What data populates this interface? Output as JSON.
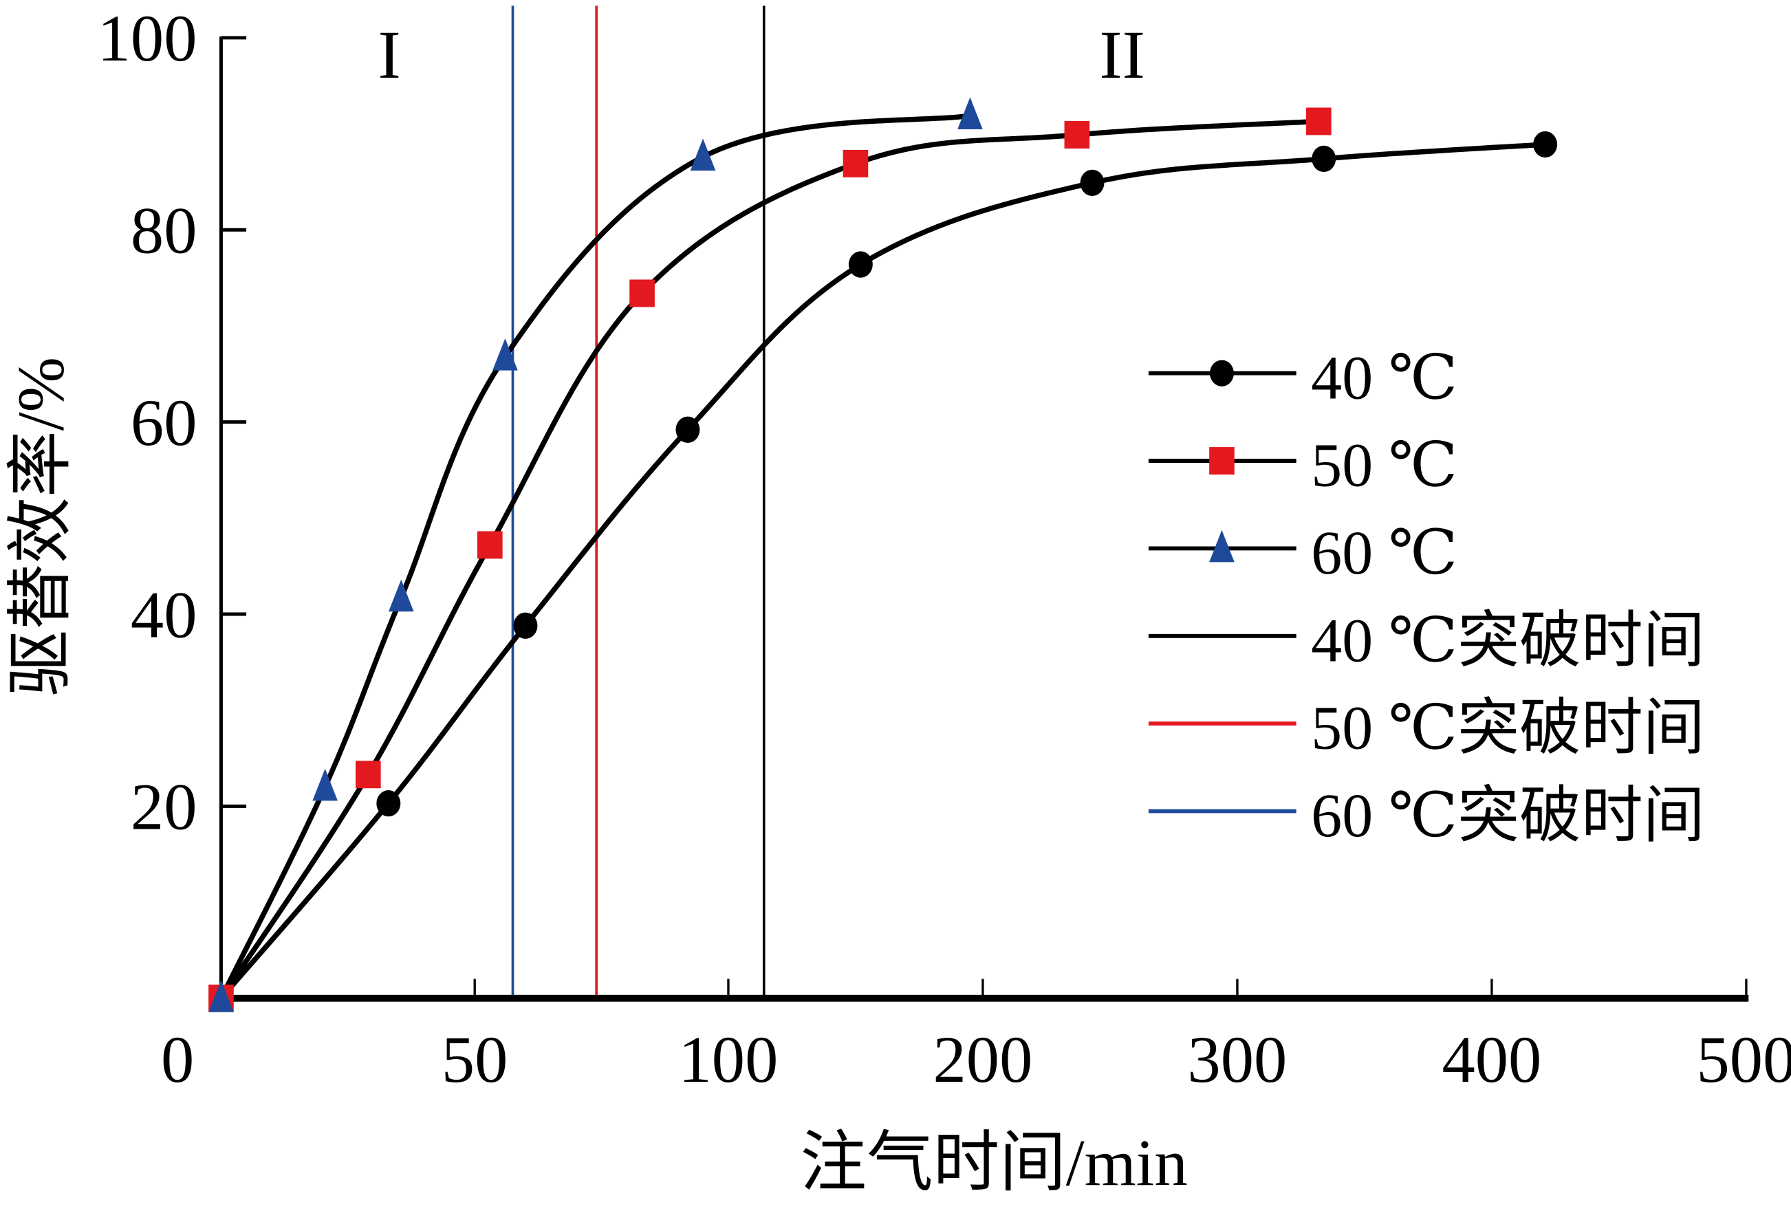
{
  "chart_data": {
    "type": "line",
    "title": "",
    "xlabel": "注气时间/min",
    "ylabel": "驱替效率/%",
    "x_scale": "piecewise: 0-100 expanded, 100-500 compressed",
    "xlim": [
      0,
      500
    ],
    "ylim": [
      0,
      100
    ],
    "x_ticks": [
      0,
      50,
      100,
      200,
      300,
      400,
      500
    ],
    "x_tick_labels": [
      "0",
      "50",
      "100",
      "200",
      "300",
      "400",
      "500"
    ],
    "y_ticks": [
      20,
      40,
      60,
      80,
      100
    ],
    "y_tick_labels": [
      "20",
      "40",
      "60",
      "80",
      "100"
    ],
    "grid": false,
    "legend_position": "right",
    "region_labels": [
      "I",
      "II"
    ],
    "series": [
      {
        "name": "40 ℃",
        "marker": "circle",
        "marker_color": "#000000",
        "line_color": "#000000",
        "x": [
          0,
          33,
          60,
          92,
          152,
          243,
          334,
          421
        ],
        "y": [
          0,
          20.3,
          38.8,
          59.2,
          76.4,
          84.9,
          87.4,
          88.9
        ]
      },
      {
        "name": "50 ℃",
        "marker": "square",
        "marker_color": "#e3191f",
        "line_color": "#000000",
        "x": [
          0,
          29,
          53,
          83,
          150,
          237,
          332
        ],
        "y": [
          0,
          23.3,
          47.2,
          73.4,
          86.9,
          89.9,
          91.3
        ]
      },
      {
        "name": "60 ℃",
        "marker": "triangle",
        "marker_color": "#1f4a9b",
        "line_color": "#000000",
        "x": [
          0,
          20.5,
          35.5,
          56,
          95,
          195
        ],
        "y": [
          0,
          22,
          41.7,
          66.8,
          87.6,
          91.9
        ]
      }
    ],
    "breakthrough_lines": [
      {
        "name": "40 ℃突破时间",
        "x": 114,
        "color": "#000000"
      },
      {
        "name": "50 ℃突破时间",
        "x": 74,
        "color": "#e3191f"
      },
      {
        "name": "60 ℃突破时间",
        "x": 57.5,
        "color": "#1f4a9b"
      }
    ]
  }
}
